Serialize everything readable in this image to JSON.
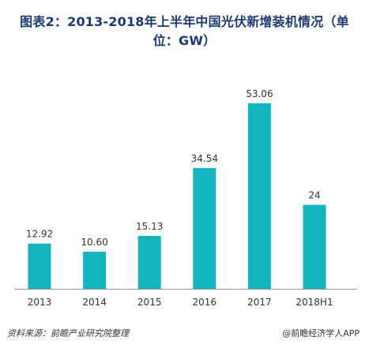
{
  "title": "图表2：2013-2018年上半年中国光伏新增装机情况（单位：GW）",
  "footer": {
    "source": "资料来源：前瞻产业研究院整理",
    "watermark": "@前瞻经济学人APP"
  },
  "colors": {
    "bar": "#12b5bd",
    "title": "#1a3a72",
    "axis": "#999999"
  },
  "chart_data": {
    "type": "bar",
    "title": "图表2：2013-2018年上半年中国光伏新增装机情况（单位：GW）",
    "categories": [
      "2013",
      "2014",
      "2015",
      "2016",
      "2017",
      "2018H1"
    ],
    "values": [
      12.92,
      10.6,
      15.13,
      34.54,
      53.06,
      24
    ],
    "value_labels": [
      "12.92",
      "10.60",
      "15.13",
      "34.54",
      "53.06",
      "24"
    ],
    "ylim": [
      0,
      60
    ],
    "grid": false,
    "legend": "none"
  }
}
